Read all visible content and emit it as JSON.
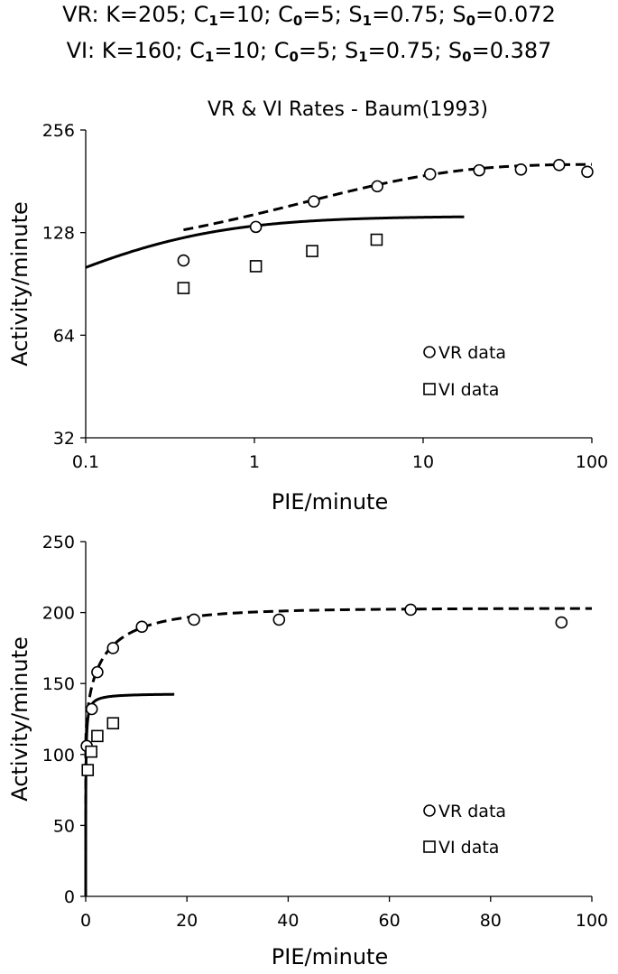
{
  "params": {
    "vr": {
      "prefix": "VR: K=205; C",
      "c1_sub": "1",
      "c1_val": "=10; C",
      "c0_sub": "0",
      "c0_val": "=5; S",
      "s1_sub": "1",
      "s1_val": "=0.75; S",
      "s0_sub": "0",
      "s0_val": "=0.072"
    },
    "vi": {
      "prefix": "VI: K=160; C",
      "c1_sub": "1",
      "c1_val": "=10; C",
      "c0_sub": "0",
      "c0_val": "=5; S",
      "s1_sub": "1",
      "s1_val": "=0.75; S",
      "s0_sub": "0",
      "s0_val": "=0.387"
    }
  },
  "chart_data": [
    {
      "type": "scatter",
      "scale": "log-log",
      "title": "VR & VI Rates - Baum(1993)",
      "xlabel": "PIE/minute",
      "ylabel": "Activity/minute",
      "xlim": [
        0.1,
        100
      ],
      "ylim": [
        32,
        256
      ],
      "xticks": [
        0.1,
        1,
        10,
        100
      ],
      "xtick_labels": [
        "0.1",
        "1",
        "10",
        "100"
      ],
      "yticks": [
        32,
        64,
        128,
        256
      ],
      "ytick_labels": [
        "32",
        "64",
        "128",
        "256"
      ],
      "legend": [
        "VR data",
        "VI data"
      ],
      "legend_position": "right",
      "series": [
        {
          "name": "VR data",
          "marker": "circle",
          "x": [
            0.38,
            1.02,
            2.25,
            5.35,
            11,
            21.5,
            38,
            64,
            94
          ],
          "y": [
            106,
            133,
            158,
            175,
            190,
            195,
            196,
            202,
            193
          ]
        },
        {
          "name": "VI data",
          "marker": "square",
          "x": [
            0.38,
            1.02,
            2.2,
            5.3
          ],
          "y": [
            88,
            102,
            113,
            122
          ]
        }
      ],
      "fits": [
        {
          "name": "VR fit",
          "style": "dashed",
          "x_range": [
            0.38,
            100
          ]
        },
        {
          "name": "VI fit",
          "style": "solid",
          "x_range": [
            0.1,
            17.5
          ]
        }
      ]
    },
    {
      "type": "scatter",
      "scale": "linear",
      "title": "",
      "xlabel": "PIE/minute",
      "ylabel": "Activity/minute",
      "xlim": [
        0,
        100
      ],
      "ylim": [
        0,
        250
      ],
      "xticks": [
        0,
        20,
        40,
        60,
        80,
        100
      ],
      "xtick_labels": [
        "0",
        "20",
        "40",
        "60",
        "80",
        "100"
      ],
      "yticks": [
        0,
        50,
        100,
        150,
        200,
        250
      ],
      "ytick_labels": [
        "0",
        "50",
        "100",
        "150",
        "200",
        "250"
      ],
      "legend": [
        "VR data",
        "VI data"
      ],
      "legend_position": "bottom-right",
      "series": [
        {
          "name": "VR data",
          "marker": "circle",
          "x": [
            0.2,
            1.2,
            2.3,
            5.4,
            11.1,
            21.4,
            38.2,
            64.2,
            94
          ],
          "y": [
            106,
            132,
            158,
            175,
            190,
            195,
            195,
            202,
            193
          ]
        },
        {
          "name": "VI data",
          "marker": "square",
          "x": [
            0.4,
            1.1,
            2.3,
            5.4
          ],
          "y": [
            89,
            102,
            113,
            122
          ]
        }
      ],
      "fits": [
        {
          "name": "VR fit",
          "style": "dashed",
          "x_range": [
            0.01,
            100
          ]
        },
        {
          "name": "VI fit",
          "style": "solid",
          "x_range": [
            0.005,
            17.5
          ]
        }
      ]
    }
  ]
}
